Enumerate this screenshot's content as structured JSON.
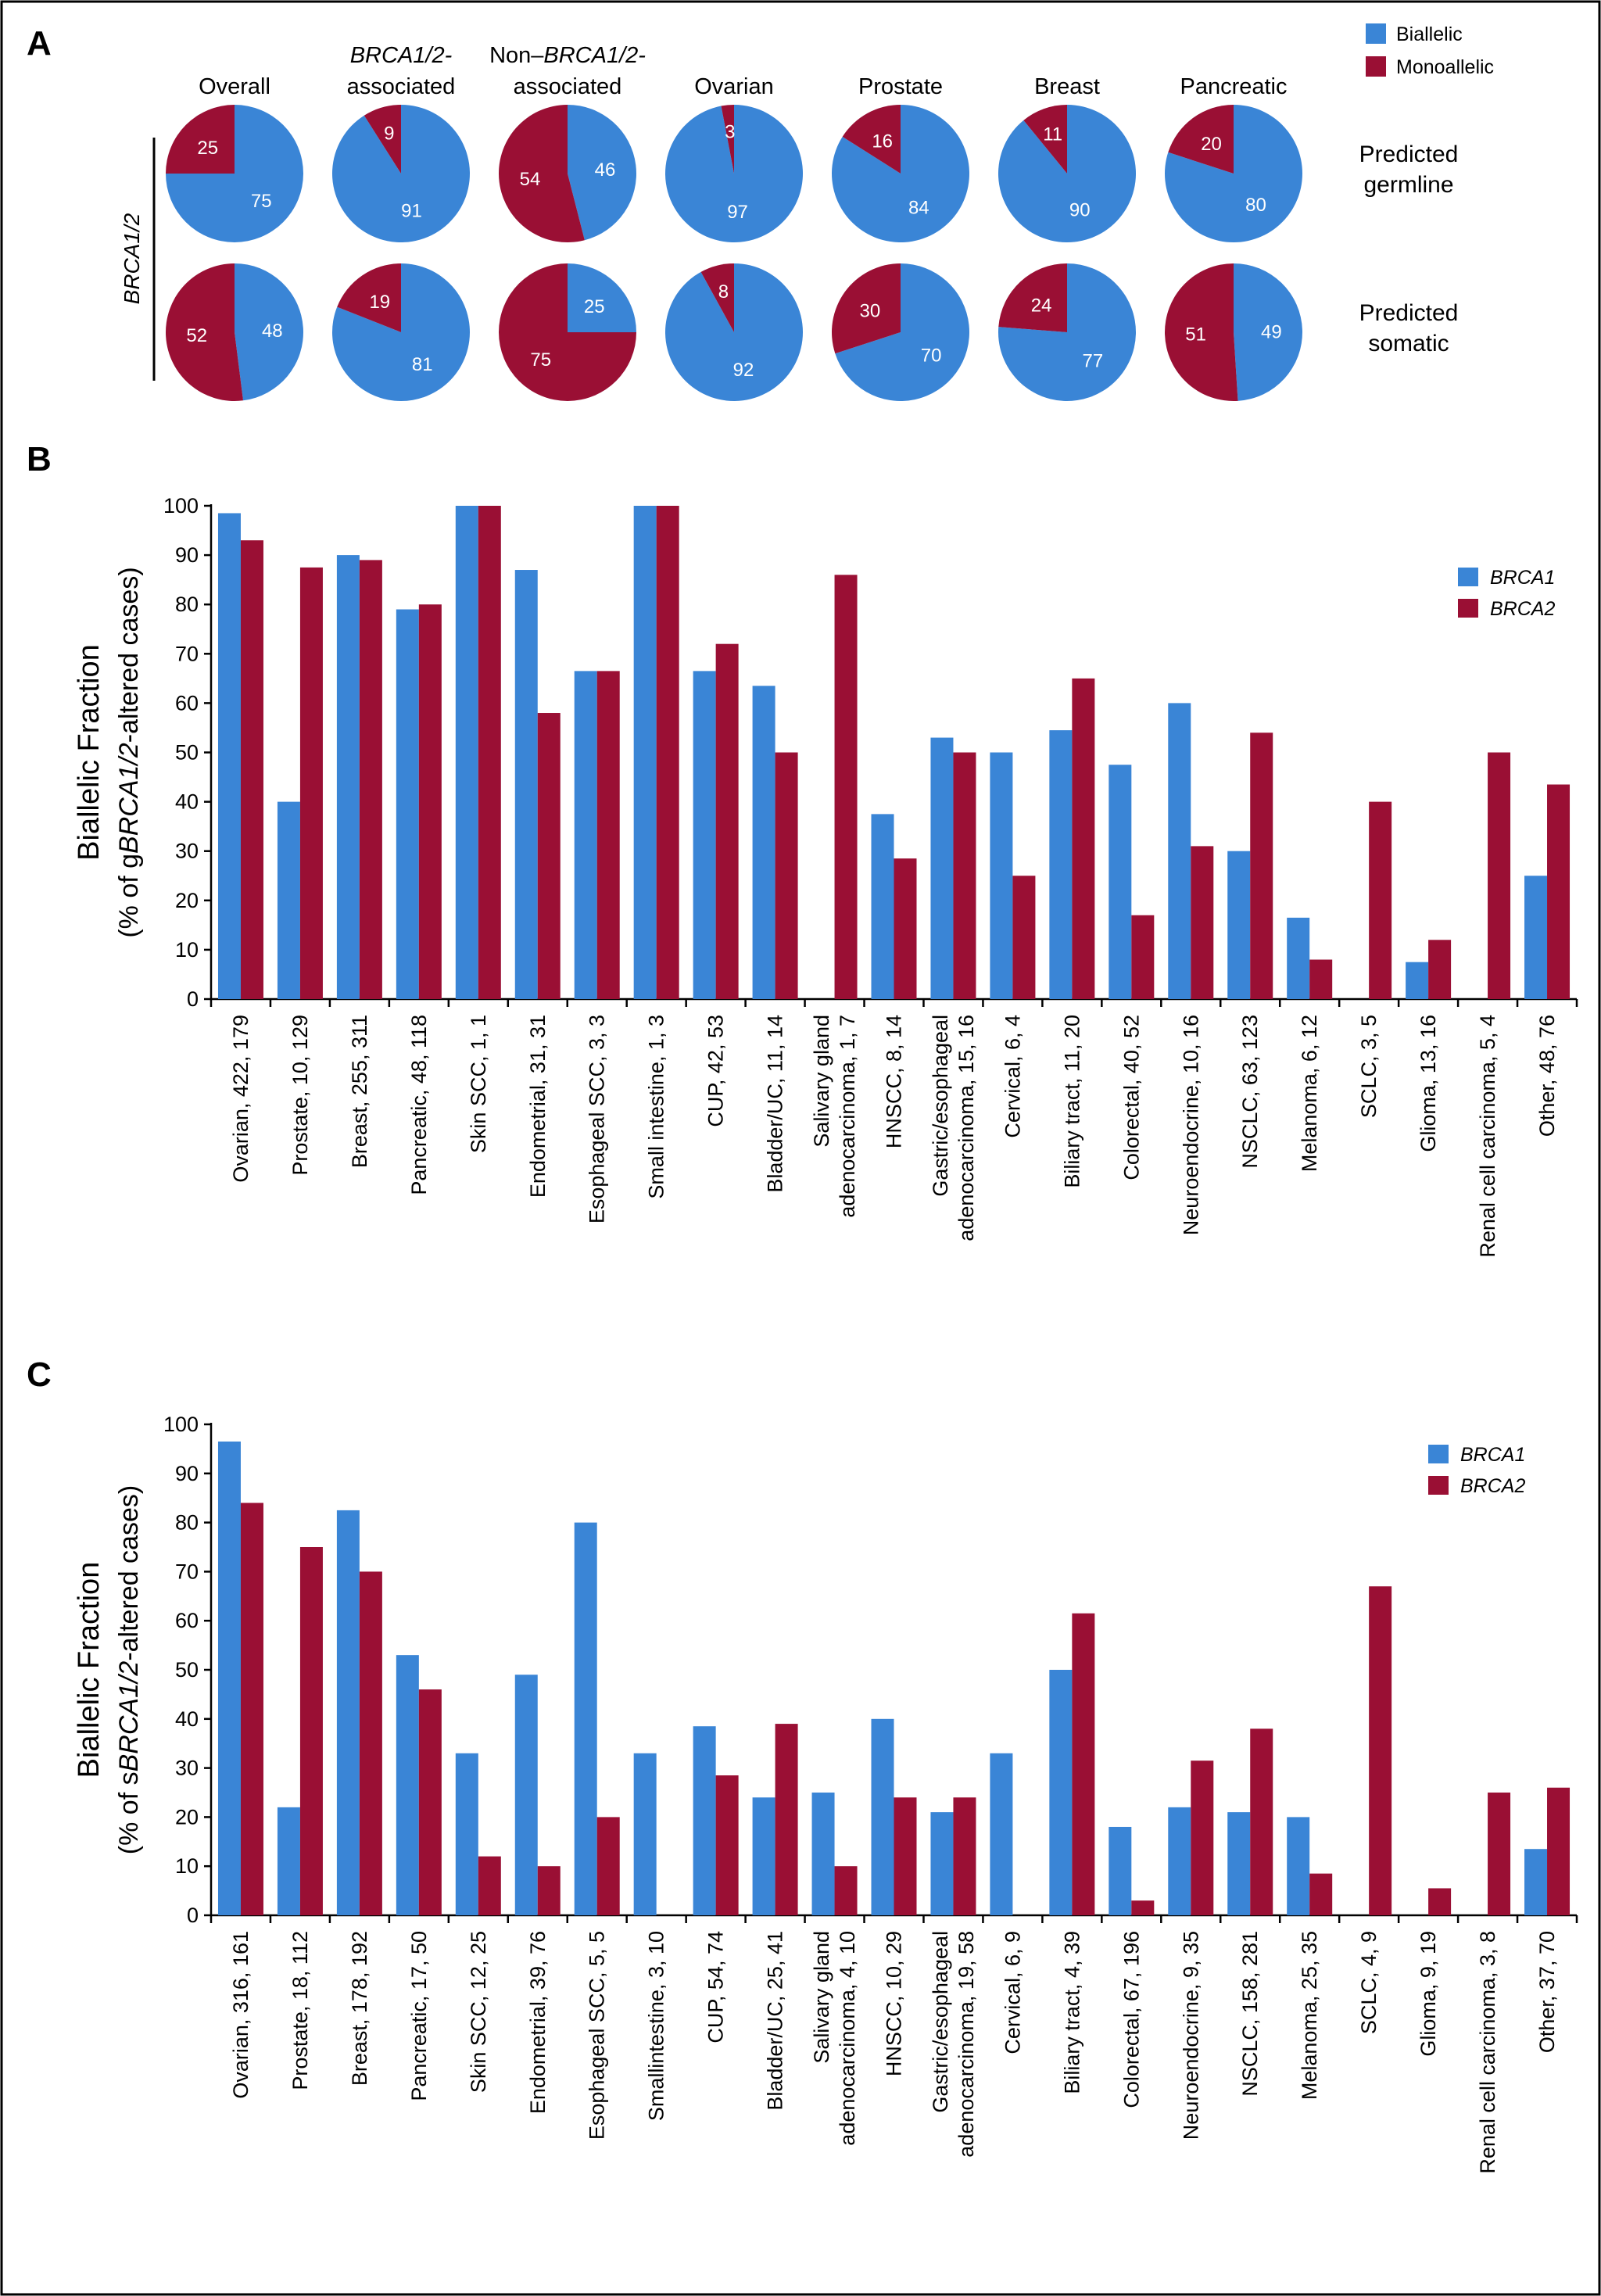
{
  "colors": {
    "biallelic": "#3a85d6",
    "monoallelic": "#9a0f34",
    "brca1": "#3a85d6",
    "brca2": "#9a0f34",
    "axis": "#000000"
  },
  "chart_data": [
    {
      "panel": "A",
      "type": "pie",
      "legend": [
        "Biallelic",
        "Monoallelic"
      ],
      "side_label": "BRCA1/2",
      "columns": [
        {
          "line1": "",
          "line1_italic": "",
          "line2": "Overall"
        },
        {
          "line1": "",
          "line1_italic": "BRCA1/2-",
          "line2": "associated"
        },
        {
          "line1": "Non–",
          "line1_italic": "BRCA1/2-",
          "line2": "associated"
        },
        {
          "line1": "",
          "line1_italic": "",
          "line2": "Ovarian"
        },
        {
          "line1": "",
          "line1_italic": "",
          "line2": "Prostate"
        },
        {
          "line1": "",
          "line1_italic": "",
          "line2": "Breast"
        },
        {
          "line1": "",
          "line1_italic": "",
          "line2": "Pancreatic"
        }
      ],
      "rows": [
        {
          "label1": "Predicted",
          "label2": "germline",
          "biallelic": [
            75,
            91,
            46,
            97,
            84,
            90,
            80
          ],
          "monoallelic": [
            25,
            9,
            54,
            3,
            16,
            11,
            20
          ]
        },
        {
          "label1": "Predicted",
          "label2": "somatic",
          "biallelic": [
            48,
            81,
            25,
            92,
            70,
            77,
            49
          ],
          "monoallelic": [
            52,
            19,
            75,
            8,
            30,
            24,
            51
          ]
        }
      ]
    },
    {
      "panel": "B",
      "type": "bar",
      "ylabel_line1": "Biallelic Fraction",
      "ylabel_pre": "(% of g",
      "ylabel_it": "BRCA1/2",
      "ylabel_post": "-altered cases)",
      "ylim": [
        0,
        100
      ],
      "yticks": [
        "0",
        "10",
        "20",
        "30",
        "40",
        "50",
        "60",
        "70",
        "80",
        "90",
        "100"
      ],
      "legend": [
        "BRCA1",
        "BRCA2"
      ],
      "categories": [
        [
          "Ovarian, 422, 179"
        ],
        [
          "Prostate, 10, 129"
        ],
        [
          "Breast, 255, 311"
        ],
        [
          "Pancreatic, 48, 118"
        ],
        [
          "Skin SCC, 1, 1"
        ],
        [
          "Endometrial, 31, 31"
        ],
        [
          "Esophageal SCC, 3, 3"
        ],
        [
          "Small intestine, 1, 3"
        ],
        [
          "CUP, 42, 53"
        ],
        [
          "Bladder/UC, 11, 14"
        ],
        [
          "Salivary gland",
          "adenocarcinoma, 1, 7"
        ],
        [
          "HNSCC, 8, 14"
        ],
        [
          "Gastric/esophageal",
          "adenocarcinoma, 15, 16"
        ],
        [
          "Cervical, 6, 4"
        ],
        [
          "Biliary tract, 11, 20"
        ],
        [
          "Colorectal, 40, 52"
        ],
        [
          "Neuroendocrine, 10, 16"
        ],
        [
          "NSCLC, 63, 123"
        ],
        [
          "Melanoma, 6, 12"
        ],
        [
          "SCLC, 3, 5"
        ],
        [
          "Glioma, 13, 16"
        ],
        [
          "Renal cell carcinoma, 5, 4"
        ],
        [
          "Other, 48, 76"
        ]
      ],
      "series": [
        {
          "name": "BRCA1",
          "values": [
            98.5,
            40,
            90,
            79,
            100,
            87,
            66.5,
            100,
            66.5,
            63.5,
            0,
            37.5,
            53,
            50,
            54.5,
            47.5,
            60,
            30,
            16.5,
            0,
            7.5,
            0,
            25
          ]
        },
        {
          "name": "BRCA2",
          "values": [
            93,
            87.5,
            89,
            80,
            100,
            58,
            66.5,
            100,
            72,
            50,
            86,
            28.5,
            50,
            25,
            65,
            17,
            31,
            54,
            8,
            40,
            12,
            50,
            43.5
          ]
        }
      ]
    },
    {
      "panel": "C",
      "type": "bar",
      "ylabel_line1": "Biallelic Fraction",
      "ylabel_pre": "(% of s",
      "ylabel_it": "BRCA1/2",
      "ylabel_post": "-altered cases)",
      "ylim": [
        0,
        100
      ],
      "yticks": [
        "0",
        "10",
        "20",
        "30",
        "40",
        "50",
        "60",
        "70",
        "80",
        "90",
        "100"
      ],
      "legend": [
        "BRCA1",
        "BRCA2"
      ],
      "categories": [
        [
          "Ovarian, 316, 161"
        ],
        [
          "Prostate, 18, 112"
        ],
        [
          "Breast, 178, 192"
        ],
        [
          "Pancreatic, 17, 50"
        ],
        [
          "Skin SCC, 12, 25"
        ],
        [
          "Endometrial, 39, 76"
        ],
        [
          "Esophageal SCC, 5, 5"
        ],
        [
          "Smallintestine, 3, 10"
        ],
        [
          "CUP, 54, 74"
        ],
        [
          "Bladder/UC, 25, 41"
        ],
        [
          "Salivary gland",
          "adenocarcinoma, 4, 10"
        ],
        [
          "HNSCC, 10, 29"
        ],
        [
          "Gastric/esophageal",
          "adenocarcinoma, 19, 58"
        ],
        [
          "Cervical, 6, 9"
        ],
        [
          "Biliary tract, 4, 39"
        ],
        [
          "Colorectal, 67, 196"
        ],
        [
          "Neuroendocrine, 9, 35"
        ],
        [
          "NSCLC, 158, 281"
        ],
        [
          "Melanoma, 25, 35"
        ],
        [
          "SCLC, 4, 9"
        ],
        [
          "Glioma, 9, 19"
        ],
        [
          "Renal cell carcinoma, 3, 8"
        ],
        [
          "Other, 37, 70"
        ]
      ],
      "series": [
        {
          "name": "BRCA1",
          "values": [
            96.5,
            22,
            82.5,
            53,
            33,
            49,
            80,
            33,
            38.5,
            24,
            25,
            40,
            21,
            33,
            50,
            18,
            22,
            21,
            20,
            0,
            0,
            0,
            13.5
          ]
        },
        {
          "name": "BRCA2",
          "values": [
            84,
            75,
            70,
            46,
            12,
            10,
            20,
            0,
            28.5,
            39,
            10,
            24,
            24,
            0,
            61.5,
            3,
            31.5,
            38,
            8.5,
            67,
            5.5,
            25,
            26
          ]
        }
      ]
    }
  ]
}
